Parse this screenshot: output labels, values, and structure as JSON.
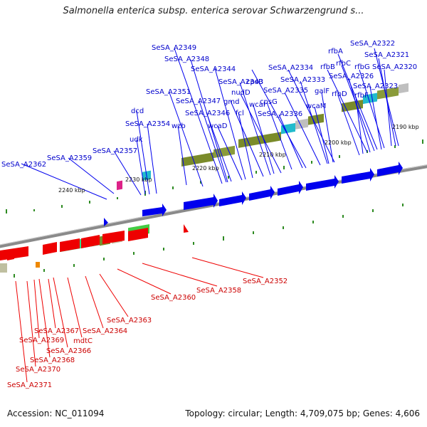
{
  "header": {
    "title": "Salmonella enterica subsp. enterica serovar Schwarzengrund s..."
  },
  "footer": {
    "accession": "Accession: NC_011094",
    "topology": "Topology: circular; Length: 4,709,075 bp; Genes: 4,606"
  },
  "scale_labels": [
    "2190 kbp",
    "2200 kbp",
    "2210 kbp",
    "2220 kbp",
    "2230 kbp",
    "2240 kbp"
  ],
  "forward_labels": [
    "SeSA_A2322",
    "SeSA_A2321",
    "SeSA_A2320",
    "rfbA",
    "rfbC",
    "rfbG",
    "rfbB",
    "SeSA_A2326",
    "SeSA_A2323",
    "rfbD",
    "rfbF",
    "SeSA_A2334",
    "SeSA_A2333",
    "SeSA_A2335",
    "galF",
    "cpsB",
    "nudD",
    "SeSA_A2343",
    "cpsG",
    "wcaI",
    "gmd",
    "SeSA_A2336",
    "wcaM",
    "fcl",
    "SeSA_A2344",
    "SeSA_A2348",
    "SeSA_A2349",
    "SeSA_A2351",
    "SeSA_A2347",
    "SeSA_A2346",
    "wcaD",
    "wzb",
    "dcd",
    "SeSA_A2354",
    "udk",
    "SeSA_A2357",
    "SeSA_A2359",
    "SeSA_A2362"
  ],
  "reverse_labels": [
    "SeSA_A2352",
    "SeSA_A2358",
    "SeSA_A2360",
    "SeSA_A2363",
    "SeSA_A2364",
    "mdtC",
    "SeSA_A2367",
    "SeSA_A2366",
    "SeSA_A2369",
    "SeSA_A2368",
    "SeSA_A2370",
    "SeSA_A2371"
  ],
  "colors": {
    "forward": "#0000ee",
    "reverse": "#ee0000",
    "backbone": "#888888",
    "cds_track": "#7a8b2a",
    "tick": "#2e8b22"
  }
}
